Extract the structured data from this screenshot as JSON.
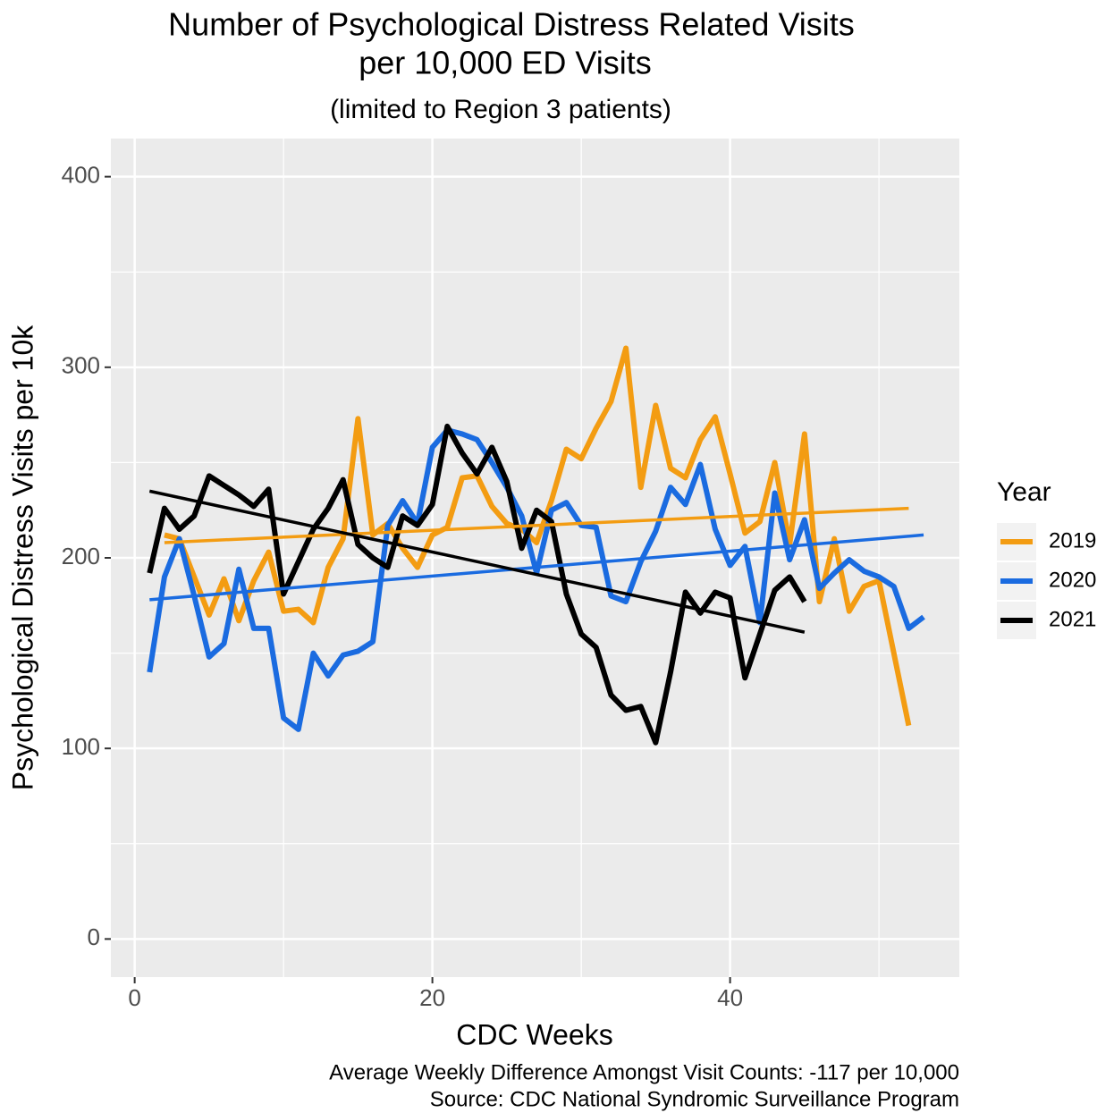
{
  "chart_data": {
    "type": "line",
    "title": [
      "Number of Psychological Distress Related Visits",
      "per 10,000 ED Visits"
    ],
    "subtitle": "(limited to Region 3 patients)",
    "x_label": "CDC Weeks",
    "y_label": "Psychological Distress Visits per 10k",
    "caption": [
      "Average Weekly Difference Amongst Visit Counts: -117 per 10,000",
      "Source: CDC National Syndromic Surveillance Program"
    ],
    "legend_title": "Year",
    "legend_position": "right",
    "grid": true,
    "xlim": [
      -1.6,
      55.4
    ],
    "ylim": [
      -20,
      420
    ],
    "xticks": [
      0,
      20,
      40
    ],
    "yticks": [
      0,
      100,
      200,
      300,
      400
    ],
    "series": [
      {
        "name": "2019",
        "color": "#f39c12",
        "x": [
          2,
          3,
          4,
          5,
          6,
          7,
          8,
          9,
          10,
          11,
          12,
          13,
          14,
          15,
          16,
          17,
          18,
          19,
          20,
          21,
          22,
          23,
          24,
          25,
          26,
          27,
          28,
          29,
          30,
          31,
          32,
          33,
          34,
          35,
          36,
          37,
          38,
          39,
          40,
          41,
          42,
          43,
          44,
          45,
          46,
          47,
          48,
          49,
          50,
          51,
          52
        ],
        "values": [
          212,
          210,
          190,
          170,
          189,
          167,
          188,
          203,
          172,
          173,
          166,
          195,
          210,
          273,
          212,
          218,
          205,
          195,
          212,
          216,
          242,
          243,
          227,
          218,
          215,
          208,
          230,
          257,
          252,
          268,
          282,
          310,
          237,
          280,
          247,
          242,
          262,
          274,
          244,
          213,
          219,
          250,
          207,
          265,
          177,
          210,
          172,
          185,
          188,
          150,
          112
        ],
        "trend": {
          "x": [
            2,
            52
          ],
          "y": [
            208,
            226
          ]
        }
      },
      {
        "name": "2020",
        "color": "#1a6be0",
        "x": [
          1,
          2,
          3,
          4,
          5,
          6,
          7,
          8,
          9,
          10,
          11,
          12,
          13,
          14,
          15,
          16,
          17,
          18,
          19,
          20,
          21,
          22,
          23,
          24,
          25,
          26,
          27,
          28,
          29,
          30,
          31,
          32,
          33,
          34,
          35,
          36,
          37,
          38,
          39,
          40,
          41,
          42,
          43,
          44,
          45,
          46,
          47,
          48,
          49,
          50,
          51,
          52,
          53
        ],
        "values": [
          140,
          190,
          210,
          180,
          148,
          155,
          194,
          163,
          163,
          116,
          110,
          150,
          138,
          149,
          151,
          156,
          217,
          230,
          218,
          258,
          267,
          265,
          262,
          250,
          237,
          222,
          192,
          225,
          229,
          217,
          216,
          180,
          177,
          198,
          214,
          237,
          228,
          249,
          215,
          196,
          206,
          166,
          234,
          199,
          220,
          184,
          192,
          199,
          193,
          190,
          185,
          163,
          169
        ],
        "trend": {
          "x": [
            1,
            53
          ],
          "y": [
            178,
            212
          ]
        }
      },
      {
        "name": "2021",
        "color": "#000000",
        "x": [
          1,
          2,
          3,
          4,
          5,
          6,
          7,
          8,
          9,
          10,
          11,
          12,
          13,
          14,
          15,
          16,
          17,
          18,
          19,
          20,
          21,
          22,
          23,
          24,
          25,
          26,
          27,
          28,
          29,
          30,
          31,
          32,
          33,
          34,
          35,
          36,
          37,
          38,
          39,
          40,
          41,
          42,
          43,
          44,
          45
        ],
        "values": [
          192,
          226,
          215,
          222,
          243,
          238,
          233,
          227,
          236,
          181,
          198,
          215,
          226,
          241,
          207,
          200,
          195,
          222,
          217,
          228,
          269,
          255,
          244,
          258,
          240,
          205,
          225,
          219,
          181,
          160,
          153,
          128,
          120,
          122,
          103,
          140,
          182,
          171,
          182,
          179,
          137,
          160,
          183,
          190,
          177
        ],
        "trend": {
          "x": [
            1,
            45
          ],
          "y": [
            235,
            161
          ]
        }
      }
    ]
  }
}
